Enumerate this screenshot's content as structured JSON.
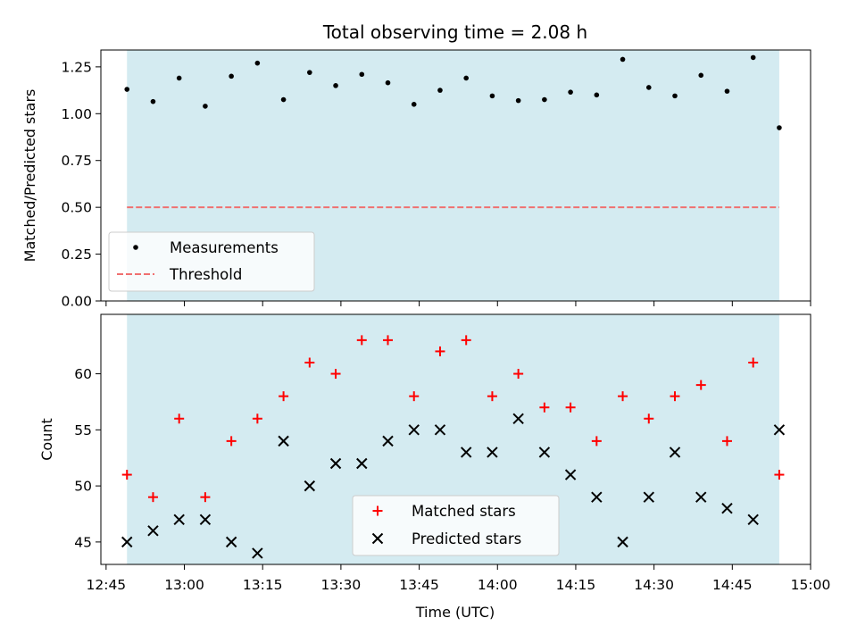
{
  "chart_data": [
    {
      "type": "scatter",
      "title": "Total observing time = 2.08 h",
      "ylabel": "Matched/Predicted stars",
      "xlabel": "",
      "ylim": [
        0,
        1.34
      ],
      "yticks": [
        "0.00",
        "0.25",
        "0.50",
        "0.75",
        "1.00",
        "1.25"
      ],
      "ytick_values": [
        0,
        0.25,
        0.5,
        0.75,
        1.0,
        1.25
      ],
      "shaded_span": [
        "12:49",
        "14:54"
      ],
      "shade_color": "#d4ebf1",
      "legend_position": "lower-left",
      "threshold": {
        "name": "Threshold",
        "value": 0.5,
        "color": "#f07070"
      },
      "series": [
        {
          "name": "Measurements",
          "color": "#000000",
          "marker": "dot",
          "x": [
            "12:49",
            "12:54",
            "12:59",
            "13:04",
            "13:09",
            "13:14",
            "13:19",
            "13:24",
            "13:29",
            "13:34",
            "13:39",
            "13:44",
            "13:49",
            "13:54",
            "13:59",
            "14:04",
            "14:09",
            "14:14",
            "14:19",
            "14:24",
            "14:29",
            "14:34",
            "14:39",
            "14:44",
            "14:49",
            "14:54"
          ],
          "y": [
            1.13,
            1.065,
            1.19,
            1.04,
            1.2,
            1.27,
            1.075,
            1.22,
            1.15,
            1.21,
            1.165,
            1.05,
            1.125,
            1.19,
            1.095,
            1.07,
            1.075,
            1.115,
            1.1,
            1.29,
            1.14,
            1.095,
            1.205,
            1.12,
            1.3,
            0.925
          ]
        }
      ]
    },
    {
      "type": "scatter",
      "title": "",
      "xlabel": "Time (UTC)",
      "ylabel": "Count",
      "xlim": [
        "12:44",
        "15:00"
      ],
      "xticks": [
        "12:45",
        "13:00",
        "13:15",
        "13:30",
        "13:45",
        "14:00",
        "14:15",
        "14:30",
        "14:45",
        "15:00"
      ],
      "ylim": [
        43,
        65.3
      ],
      "yticks": [
        "45",
        "50",
        "55",
        "60"
      ],
      "ytick_values": [
        45,
        50,
        55,
        60
      ],
      "shaded_span": [
        "12:49",
        "14:54"
      ],
      "shade_color": "#d4ebf1",
      "legend_position": "lower-center",
      "series": [
        {
          "name": "Matched stars",
          "color": "#ff0000",
          "marker": "plus",
          "x": [
            "12:49",
            "12:54",
            "12:59",
            "13:04",
            "13:09",
            "13:14",
            "13:19",
            "13:24",
            "13:29",
            "13:34",
            "13:39",
            "13:44",
            "13:49",
            "13:54",
            "13:59",
            "14:04",
            "14:09",
            "14:14",
            "14:19",
            "14:24",
            "14:29",
            "14:34",
            "14:39",
            "14:44",
            "14:49",
            "14:54"
          ],
          "y": [
            51,
            49,
            56,
            49,
            54,
            56,
            58,
            61,
            60,
            63,
            63,
            58,
            62,
            63,
            58,
            60,
            57,
            57,
            54,
            58,
            56,
            58,
            59,
            54,
            61,
            51
          ]
        },
        {
          "name": "Predicted stars",
          "color": "#000000",
          "marker": "x",
          "x": [
            "12:49",
            "12:54",
            "12:59",
            "13:04",
            "13:09",
            "13:14",
            "13:19",
            "13:24",
            "13:29",
            "13:34",
            "13:39",
            "13:44",
            "13:49",
            "13:54",
            "13:59",
            "14:04",
            "14:09",
            "14:14",
            "14:19",
            "14:24",
            "14:29",
            "14:34",
            "14:39",
            "14:44",
            "14:49",
            "14:54"
          ],
          "y": [
            45,
            46,
            47,
            47,
            45,
            44,
            54,
            50,
            52,
            52,
            54,
            55,
            55,
            53,
            53,
            56,
            53,
            51,
            49,
            45,
            49,
            53,
            49,
            48,
            47,
            55
          ]
        }
      ]
    }
  ]
}
